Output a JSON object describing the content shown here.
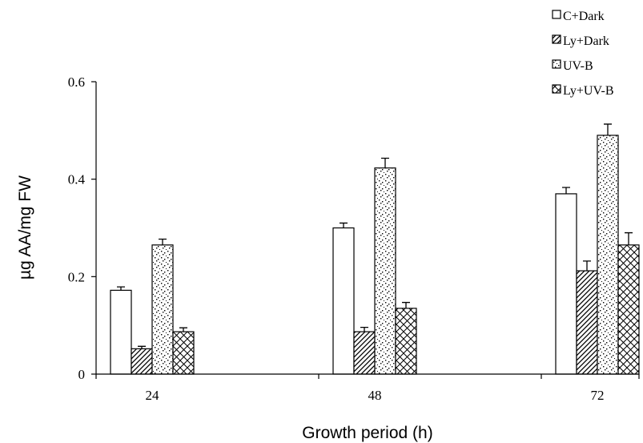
{
  "chart_data": {
    "type": "bar",
    "title": "",
    "xlabel": "Growth period (h)",
    "ylabel": "µg AA/mg FW",
    "categories": [
      "24",
      "48",
      "72"
    ],
    "ylim": [
      0,
      0.6
    ],
    "yticks": [
      "0",
      "0.2",
      "0.4",
      "0.6"
    ],
    "grid": false,
    "legend_position": "top-right",
    "series": [
      {
        "name": "C+Dark",
        "pattern": "open",
        "values": [
          0.172,
          0.3,
          0.37
        ],
        "errors": [
          0.007,
          0.01,
          0.013
        ]
      },
      {
        "name": "Ly+Dark",
        "pattern": "diagonal-hatch",
        "values": [
          0.052,
          0.087,
          0.212
        ],
        "errors": [
          0.005,
          0.009,
          0.02
        ]
      },
      {
        "name": "UV-B",
        "pattern": "dotted",
        "values": [
          0.265,
          0.423,
          0.49
        ],
        "errors": [
          0.012,
          0.02,
          0.023
        ]
      },
      {
        "name": "Ly+UV-B",
        "pattern": "crosshatch",
        "values": [
          0.087,
          0.135,
          0.265
        ],
        "errors": [
          0.008,
          0.012,
          0.025
        ]
      }
    ]
  }
}
